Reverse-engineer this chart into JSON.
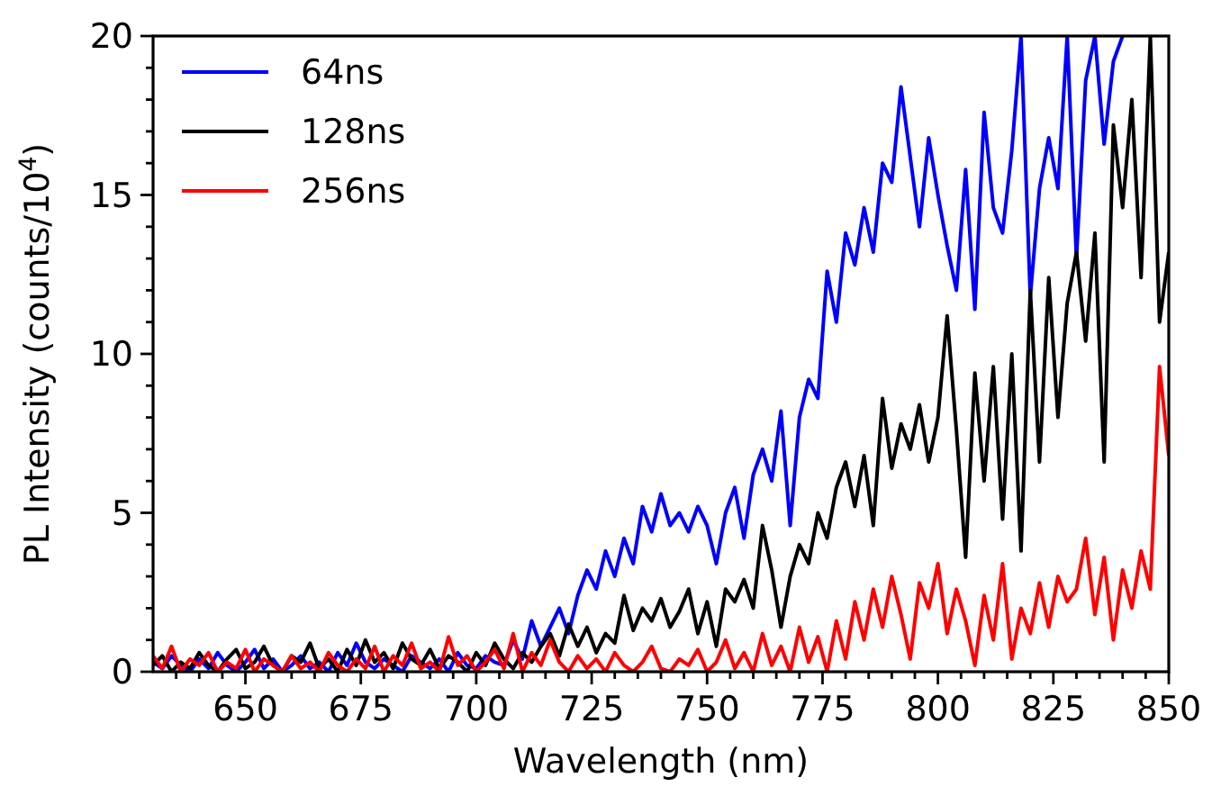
{
  "chart_data": {
    "type": "line",
    "xlabel": "Wavelength (nm)",
    "ylabel": "PL Intensity (counts/10$^{4}$)",
    "x": [
      630,
      632,
      634,
      636,
      638,
      640,
      642,
      644,
      646,
      648,
      650,
      652,
      654,
      656,
      658,
      660,
      662,
      664,
      666,
      668,
      670,
      672,
      674,
      676,
      678,
      680,
      682,
      684,
      686,
      688,
      690,
      692,
      694,
      696,
      698,
      700,
      702,
      704,
      706,
      708,
      710,
      712,
      714,
      716,
      718,
      720,
      722,
      724,
      726,
      728,
      730,
      732,
      734,
      736,
      738,
      740,
      742,
      744,
      746,
      748,
      750,
      752,
      754,
      756,
      758,
      760,
      762,
      764,
      766,
      768,
      770,
      772,
      774,
      776,
      778,
      780,
      782,
      784,
      786,
      788,
      790,
      792,
      794,
      796,
      798,
      800,
      802,
      804,
      806,
      808,
      810,
      812,
      814,
      816,
      818,
      820,
      822,
      824,
      826,
      828,
      830,
      832,
      834,
      836,
      838,
      840,
      842,
      844,
      846,
      848,
      850
    ],
    "series": [
      {
        "name": "64ns",
        "color": "#0000ff",
        "values": [
          0.3,
          0.1,
          0.5,
          0.2,
          0.0,
          0.4,
          0.1,
          0.6,
          0.2,
          0.0,
          0.3,
          0.7,
          0.1,
          0.4,
          0.0,
          0.2,
          0.5,
          0.1,
          0.3,
          0.0,
          0.6,
          0.2,
          0.9,
          0.3,
          0.1,
          0.4,
          0.2,
          0.0,
          0.5,
          0.3,
          0.1,
          0.4,
          0.0,
          0.6,
          0.2,
          0.1,
          0.5,
          0.3,
          0.2,
          1.0,
          0.4,
          1.6,
          0.8,
          1.4,
          2.0,
          1.2,
          2.4,
          3.2,
          2.6,
          3.8,
          3.0,
          4.2,
          3.4,
          5.2,
          4.4,
          5.6,
          4.6,
          5.0,
          4.4,
          5.2,
          4.6,
          3.4,
          5.0,
          5.8,
          4.2,
          6.2,
          7.0,
          6.0,
          8.2,
          4.6,
          8.0,
          9.2,
          8.6,
          12.6,
          11.0,
          13.8,
          12.8,
          14.6,
          13.2,
          16.0,
          15.4,
          18.4,
          16.2,
          14.0,
          16.8,
          15.0,
          13.4,
          12.0,
          15.8,
          11.4,
          17.6,
          14.6,
          13.8,
          16.4,
          20.0,
          11.8,
          15.2,
          16.8,
          15.2,
          20.0,
          13.0,
          18.6,
          20.0,
          16.6,
          19.2,
          20.0,
          null,
          null,
          null,
          null,
          null
        ]
      },
      {
        "name": "128ns",
        "color": "#000000",
        "values": [
          0.2,
          0.5,
          0.0,
          0.3,
          0.1,
          0.6,
          0.2,
          0.0,
          0.4,
          0.7,
          0.1,
          0.3,
          0.8,
          0.2,
          0.0,
          0.5,
          0.3,
          0.9,
          0.1,
          0.4,
          0.0,
          0.7,
          0.2,
          1.0,
          0.3,
          0.6,
          0.1,
          0.9,
          0.4,
          0.2,
          0.7,
          0.1,
          0.5,
          0.3,
          0.0,
          0.6,
          0.2,
          0.9,
          0.4,
          0.1,
          0.6,
          0.3,
          0.8,
          1.2,
          0.5,
          1.5,
          0.8,
          1.4,
          0.6,
          1.2,
          0.9,
          2.4,
          1.3,
          2.0,
          1.6,
          2.3,
          1.4,
          1.9,
          2.6,
          1.2,
          2.2,
          0.8,
          2.6,
          2.2,
          2.9,
          2.0,
          4.6,
          3.2,
          1.4,
          3.0,
          4.0,
          3.4,
          5.0,
          4.2,
          5.8,
          6.6,
          5.2,
          6.8,
          4.6,
          8.6,
          6.4,
          7.8,
          7.0,
          8.4,
          6.6,
          8.0,
          11.2,
          7.6,
          3.6,
          9.4,
          6.0,
          9.6,
          4.8,
          10.0,
          3.8,
          12.0,
          6.6,
          12.4,
          8.0,
          11.6,
          13.2,
          10.4,
          13.8,
          6.6,
          17.2,
          14.6,
          18.0,
          12.4,
          20.0,
          11.0,
          13.2
        ]
      },
      {
        "name": "256ns",
        "color": "#ff0000",
        "values": [
          0.5,
          0.1,
          0.8,
          0.0,
          0.4,
          0.2,
          0.6,
          0.0,
          0.3,
          0.1,
          0.7,
          0.0,
          0.4,
          0.2,
          0.0,
          0.5,
          0.1,
          0.3,
          0.0,
          0.6,
          0.2,
          0.0,
          0.4,
          0.1,
          0.8,
          0.0,
          0.5,
          0.2,
          0.9,
          0.1,
          0.3,
          0.0,
          1.1,
          0.2,
          0.5,
          0.0,
          0.3,
          0.7,
          0.1,
          1.2,
          0.0,
          0.6,
          0.2,
          1.0,
          0.3,
          0.0,
          0.5,
          0.1,
          0.4,
          0.0,
          0.6,
          0.2,
          0.0,
          0.3,
          0.8,
          0.1,
          0.0,
          0.4,
          0.2,
          0.7,
          0.0,
          0.3,
          1.0,
          0.1,
          0.6,
          0.0,
          1.2,
          0.2,
          0.8,
          0.0,
          1.4,
          0.3,
          1.1,
          0.0,
          1.6,
          0.4,
          2.2,
          1.0,
          2.6,
          1.4,
          3.0,
          1.8,
          0.4,
          2.8,
          2.0,
          3.4,
          1.2,
          2.6,
          1.6,
          0.2,
          2.4,
          1.0,
          3.4,
          0.4,
          2.0,
          1.2,
          2.8,
          1.4,
          3.0,
          2.2,
          2.6,
          4.2,
          1.8,
          3.6,
          1.0,
          3.2,
          2.0,
          3.8,
          2.6,
          9.6,
          6.8
        ]
      }
    ],
    "xlim": [
      630,
      850
    ],
    "ylim": [
      0,
      20
    ],
    "xticks": [
      {
        "value": 635,
        "label": null
      },
      {
        "value": 640,
        "label": null
      },
      {
        "value": 645,
        "label": null
      },
      650,
      {
        "value": 655,
        "label": null
      },
      {
        "value": 660,
        "label": null
      },
      {
        "value": 665,
        "label": null
      },
      {
        "value": 670,
        "label": null
      },
      675,
      {
        "value": 680,
        "label": null
      },
      {
        "value": 685,
        "label": null
      },
      {
        "value": 690,
        "label": null
      },
      {
        "value": 695,
        "label": null
      },
      700,
      {
        "value": 705,
        "label": null
      },
      {
        "value": 710,
        "label": null
      },
      {
        "value": 715,
        "label": null
      },
      {
        "value": 720,
        "label": null
      },
      725,
      {
        "value": 730,
        "label": null
      },
      {
        "value": 735,
        "label": null
      },
      {
        "value": 740,
        "label": null
      },
      {
        "value": 745,
        "label": null
      },
      750,
      {
        "value": 755,
        "label": null
      },
      {
        "value": 760,
        "label": null
      },
      {
        "value": 765,
        "label": null
      },
      {
        "value": 770,
        "label": null
      },
      775,
      {
        "value": 780,
        "label": null
      },
      {
        "value": 785,
        "label": null
      },
      {
        "value": 790,
        "label": null
      },
      {
        "value": 795,
        "label": null
      },
      800,
      {
        "value": 805,
        "label": null
      },
      {
        "value": 810,
        "label": null
      },
      {
        "value": 815,
        "label": null
      },
      {
        "value": 820,
        "label": null
      },
      825,
      {
        "value": 830,
        "label": null
      },
      {
        "value": 835,
        "label": null
      },
      {
        "value": 840,
        "label": null
      },
      {
        "value": 845,
        "label": null
      },
      850
    ],
    "yticks": [
      0,
      {
        "value": 1,
        "label": null
      },
      {
        "value": 2,
        "label": null
      },
      {
        "value": 3,
        "label": null
      },
      {
        "value": 4,
        "label": null
      },
      5,
      {
        "value": 6,
        "label": null
      },
      {
        "value": 7,
        "label": null
      },
      {
        "value": 8,
        "label": null
      },
      {
        "value": 9,
        "label": null
      },
      10,
      {
        "value": 11,
        "label": null
      },
      {
        "value": 12,
        "label": null
      },
      {
        "value": 13,
        "label": null
      },
      {
        "value": 14,
        "label": null
      },
      15,
      {
        "value": 16,
        "label": null
      },
      {
        "value": 17,
        "label": null
      },
      {
        "value": 18,
        "label": null
      },
      {
        "value": 19,
        "label": null
      },
      20
    ],
    "legend": "top left",
    "grid": false,
    "line_style": "solid",
    "marker": "none"
  }
}
